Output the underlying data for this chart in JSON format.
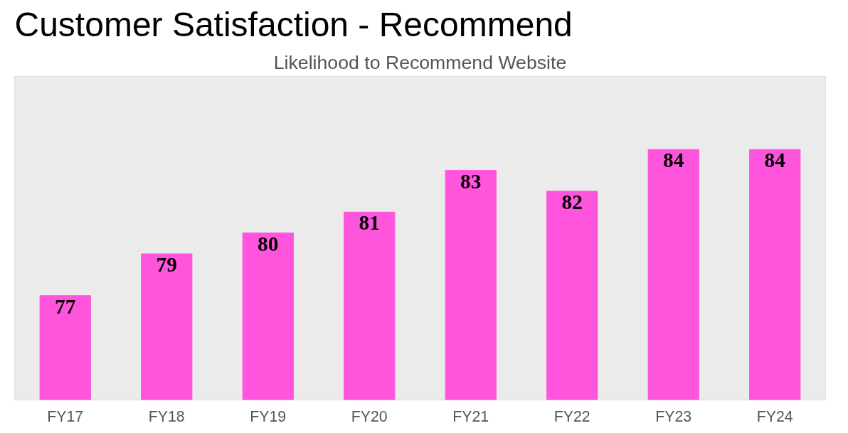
{
  "chart_data": {
    "type": "bar",
    "title": "Customer Satisfaction - Recommend",
    "subtitle": "Likelihood to Recommend Website",
    "categories": [
      "FY17",
      "FY18",
      "FY19",
      "FY20",
      "FY21",
      "FY22",
      "FY23",
      "FY24"
    ],
    "values": [
      77,
      79,
      80,
      81,
      83,
      82,
      84,
      84
    ],
    "color": "#ff55dd",
    "ylim": [
      72,
      87.5
    ],
    "data_labels": true,
    "grid": false,
    "tick_labels": "x"
  }
}
